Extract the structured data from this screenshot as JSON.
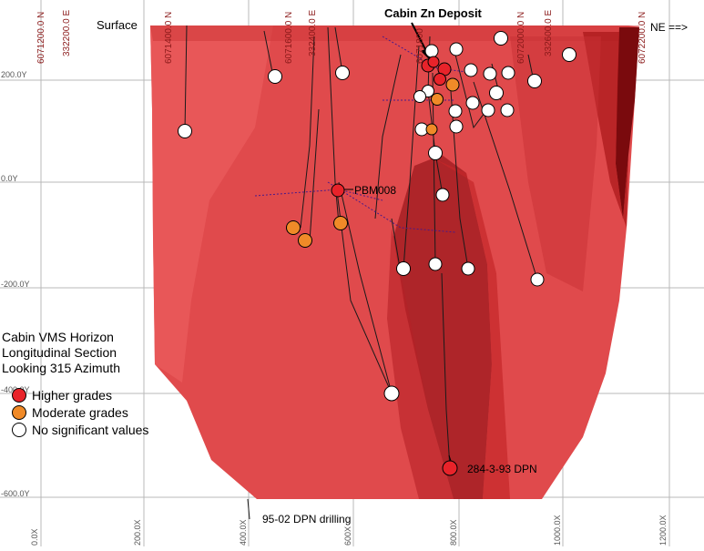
{
  "title": "Cabin Zn Deposit",
  "surface_label": "Surface",
  "direction_label": "NE ==>",
  "legend": {
    "title_lines": [
      "Cabin VMS Horizon",
      "Longitudinal Section",
      "Looking 315 Azimuth"
    ],
    "items": [
      {
        "label": "Higher grades",
        "color": "#e8232a"
      },
      {
        "label": "Moderate grades",
        "color": "#f08a28"
      },
      {
        "label": "No significant values",
        "color": "#ffffff"
      }
    ]
  },
  "annotations": {
    "hole_pbm008": "PBM008",
    "hole_284": "284-3-93 DPN",
    "drilling_95": "95-02 DPN drilling"
  },
  "y_axis_labels": [
    "200.0Y",
    "0.0Y",
    "-200.0Y",
    "-400.0Y",
    "-600.0Y"
  ],
  "x_axis_labels": [
    "0.0X",
    "200.0X",
    "400.0X",
    "600X",
    "800.0X",
    "1000.0X",
    "1200.0X"
  ],
  "top_coordinate_labels": [
    "6071200.0 N",
    "332200.0 E",
    "6071400.0 N",
    "6071600.0 N",
    "332400.0 E",
    "6071800",
    "6072000.0 N",
    "332600.0 E",
    "6072200.0 N"
  ],
  "colors": {
    "body_fill": "#e04a4c",
    "body_dark": "#8a0f12",
    "high": "#e8232a",
    "moderate": "#f08a28",
    "none": "#ffffff"
  }
}
